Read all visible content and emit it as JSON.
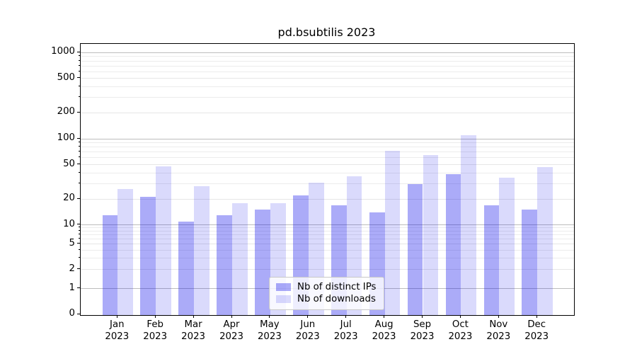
{
  "chart_data": {
    "type": "bar",
    "title": "pd.bsubtilis 2023",
    "categories": [
      "Jan 2023",
      "Feb 2023",
      "Mar 2023",
      "Apr 2023",
      "May 2023",
      "Jun 2023",
      "Jul 2023",
      "Aug 2023",
      "Sep 2023",
      "Oct 2023",
      "Nov 2023",
      "Dec 2023"
    ],
    "x_tick_lines": [
      {
        "month": "Jan",
        "year": "2023"
      },
      {
        "month": "Feb",
        "year": "2023"
      },
      {
        "month": "Mar",
        "year": "2023"
      },
      {
        "month": "Apr",
        "year": "2023"
      },
      {
        "month": "May",
        "year": "2023"
      },
      {
        "month": "Jun",
        "year": "2023"
      },
      {
        "month": "Jul",
        "year": "2023"
      },
      {
        "month": "Aug",
        "year": "2023"
      },
      {
        "month": "Sep",
        "year": "2023"
      },
      {
        "month": "Oct",
        "year": "2023"
      },
      {
        "month": "Nov",
        "year": "2023"
      },
      {
        "month": "Dec",
        "year": "2023"
      }
    ],
    "series": [
      {
        "name": "Nb of distinct IPs",
        "values": [
          13,
          21,
          11,
          13,
          15,
          22,
          17,
          14,
          30,
          39,
          17,
          15
        ],
        "color_hex": "#a8a8f6",
        "color_rgba": "rgba(10,10,235,0.34)"
      },
      {
        "name": "Nb of downloads",
        "values": [
          26,
          48,
          28,
          18,
          18,
          31,
          37,
          73,
          65,
          110,
          35,
          47
        ],
        "color_hex": "#d9d9fb",
        "color_rgba": "rgba(10,10,235,0.15)"
      }
    ],
    "yscale": "log (symlog-like, 0 at baseline)",
    "ylim": [
      0,
      1270
    ],
    "y_ticks": [
      0,
      1,
      2,
      5,
      10,
      20,
      50,
      100,
      200,
      500,
      1000
    ],
    "y_minor_gridlines": [
      3,
      4,
      6,
      7,
      8,
      9,
      30,
      40,
      60,
      70,
      80,
      90,
      300,
      400,
      600,
      700,
      800,
      900
    ],
    "grid": "both, horizontal only",
    "legend_position": "lower center",
    "colors": {
      "major_gridline": "#bdbdbd",
      "medium_gridline": "#e6e6e6",
      "minor_gridline": "#ececec",
      "spine": "#000000",
      "background": "#ffffff"
    }
  }
}
